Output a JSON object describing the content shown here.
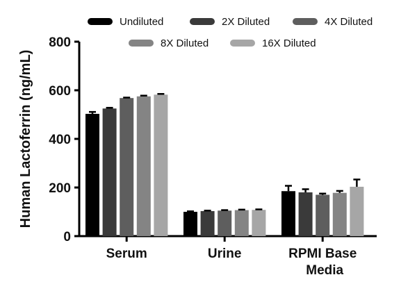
{
  "chart_data": {
    "type": "bar",
    "title": "",
    "xlabel": "",
    "ylabel": "Human Lactoferrin (ng/mL)",
    "ylim": [
      0,
      800
    ],
    "yticks": [
      "0",
      "200",
      "400",
      "600",
      "800"
    ],
    "categories": [
      {
        "lines": [
          "Serum"
        ]
      },
      {
        "lines": [
          "Urine"
        ]
      },
      {
        "lines": [
          "RPMI Base",
          "Media"
        ]
      }
    ],
    "legend_position": "top",
    "grid": false,
    "series": [
      {
        "name": "Undiluted",
        "color": "#000000",
        "values": [
          503,
          100,
          185
        ],
        "errors": [
          8,
          2,
          22
        ]
      },
      {
        "name": "2X Diluted",
        "color": "#3a3a3a",
        "values": [
          525,
          103,
          180
        ],
        "errors": [
          3,
          2,
          13
        ]
      },
      {
        "name": "4X Diluted",
        "color": "#5e5e5e",
        "values": [
          568,
          105,
          170
        ],
        "errors": [
          2,
          2,
          5
        ]
      },
      {
        "name": "8X Diluted",
        "color": "#848484",
        "values": [
          575,
          107,
          178
        ],
        "errors": [
          3,
          2,
          8
        ]
      },
      {
        "name": "16X Diluted",
        "color": "#a6a6a6",
        "values": [
          582,
          108,
          203
        ],
        "errors": [
          3,
          2,
          30
        ]
      }
    ]
  }
}
